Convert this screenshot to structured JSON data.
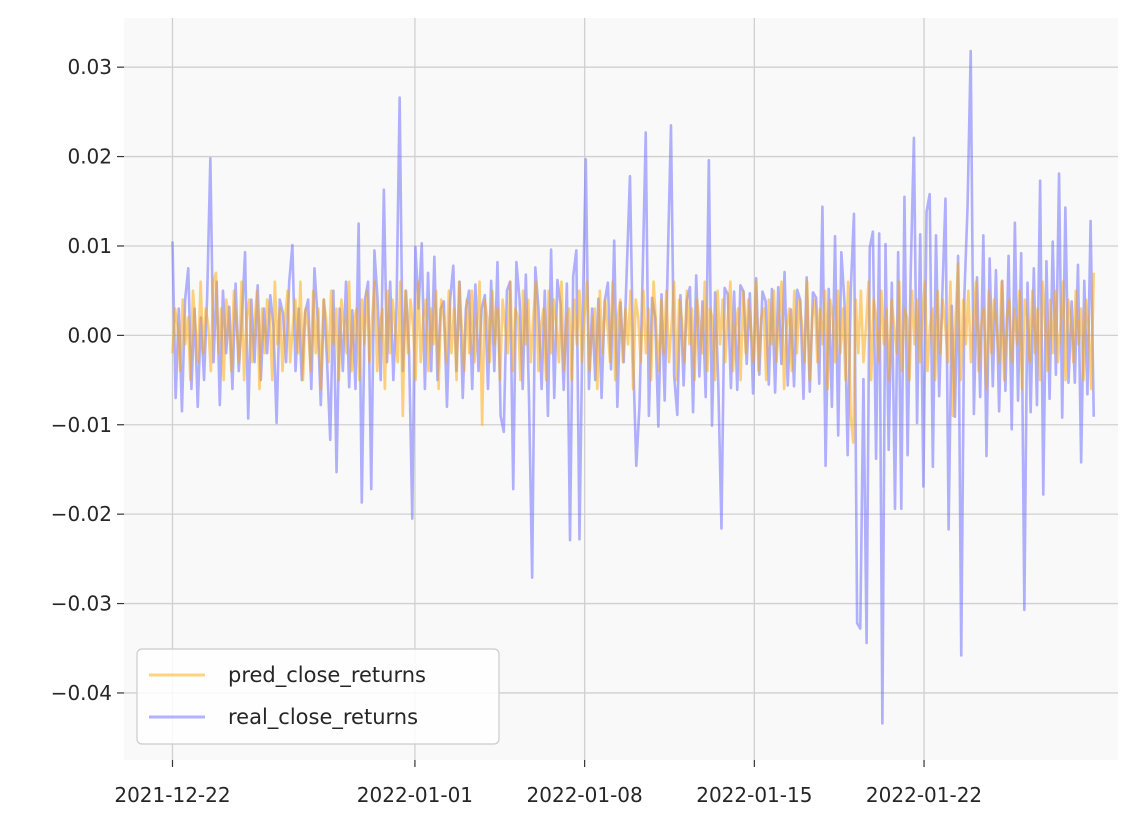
{
  "chart_data": {
    "type": "line",
    "title": "",
    "xlabel": "",
    "ylabel": "",
    "x_start": "2021-12-22",
    "x_end": "2022-01-29",
    "xlim": [
      "2021-12-20",
      "2022-01-30"
    ],
    "ylim": [
      -0.0475,
      0.0355
    ],
    "grid": true,
    "legend_position": "lower-left",
    "x_ticks": [
      "2021-12-22",
      "2022-01-01",
      "2022-01-08",
      "2022-01-15",
      "2022-01-22"
    ],
    "y_ticks": [
      {
        "value": 0.03,
        "label": "0.03"
      },
      {
        "value": 0.02,
        "label": "0.02"
      },
      {
        "value": 0.01,
        "label": "0.01"
      },
      {
        "value": 0.0,
        "label": "0.00"
      },
      {
        "value": -0.01,
        "label": "−0.01"
      },
      {
        "value": -0.02,
        "label": "−0.02"
      },
      {
        "value": -0.03,
        "label": "−0.03"
      },
      {
        "value": -0.04,
        "label": "−0.04"
      }
    ],
    "series": [
      {
        "name": "pred_close_returns",
        "color": "#ffa500",
        "values": [
          -0.002,
          0.003,
          0.001,
          -0.004,
          0.004,
          -0.001,
          0.002,
          -0.005,
          0.005,
          0.001,
          -0.003,
          0.006,
          -0.002,
          0.003,
          0.001,
          -0.004,
          0.006,
          0.007,
          -0.002,
          0.003,
          -0.005,
          0.004,
          0.002,
          -0.004,
          0.005,
          0.001,
          -0.003,
          0.006,
          -0.005,
          0.002,
          0.004,
          -0.003,
          0.001,
          0.005,
          -0.006,
          0.003,
          -0.002,
          0.004,
          0.002,
          -0.005,
          0.006,
          -0.001,
          0.003,
          -0.004,
          0.002,
          0.005,
          -0.003,
          0.001,
          0.004,
          -0.002,
          0.006,
          -0.005,
          0.003,
          0.001,
          -0.004,
          0.005,
          -0.002,
          0.003,
          -0.006,
          0.004,
          0.002,
          -0.003,
          0.005,
          -0.001,
          0.003,
          -0.005,
          0.004,
          0.001,
          -0.002,
          0.006,
          -0.004,
          0.002,
          0.003,
          -0.005,
          0.004,
          -0.001,
          0.005,
          -0.003,
          0.002,
          0.006,
          -0.004,
          0.001,
          0.003,
          -0.006,
          0.005,
          -0.002,
          0.004,
          0.001,
          -0.003,
          0.006,
          -0.009,
          0.005,
          -0.002,
          0.004,
          0.001,
          -0.005,
          0.006,
          -0.003,
          0.002,
          0.004,
          -0.004,
          0.003,
          -0.001,
          0.005,
          -0.006,
          0.004,
          0.002,
          -0.003,
          0.005,
          -0.002,
          0.003,
          -0.005,
          0.006,
          0.001,
          -0.004,
          0.004,
          -0.002,
          0.005,
          -0.003,
          0.001,
          0.006,
          -0.01,
          0.004,
          0.002,
          -0.003,
          0.005,
          -0.001,
          0.003,
          -0.005,
          0.004,
          0.001,
          -0.002,
          0.006,
          -0.004,
          0.003,
          0.002,
          -0.005,
          0.005,
          -0.001,
          0.004,
          -0.003,
          0.002,
          0.006,
          -0.004,
          0.001,
          0.003,
          -0.005,
          0.005,
          -0.002,
          0.004,
          0.001,
          -0.003,
          0.006,
          -0.004,
          0.002,
          0.003,
          -0.005,
          0.004,
          -0.001,
          0.005,
          -0.003,
          0.002,
          0.006,
          -0.004,
          0.001,
          0.003,
          -0.006,
          0.005,
          -0.002,
          0.004,
          0.001,
          -0.003,
          0.006,
          -0.005,
          0.002,
          0.004,
          -0.003,
          0.003,
          -0.001,
          0.005,
          -0.006,
          0.004,
          0.002,
          -0.003,
          0.005,
          -0.002,
          0.003,
          -0.005,
          0.006,
          0.001,
          -0.004,
          0.004,
          -0.002,
          0.005,
          -0.003,
          0.001,
          0.006,
          -0.005,
          0.004,
          0.002,
          -0.003,
          0.005,
          -0.001,
          0.003,
          -0.005,
          0.004,
          0.001,
          -0.002,
          0.006,
          -0.004,
          0.003,
          0.002,
          -0.005,
          0.005,
          -0.001,
          0.004,
          -0.003,
          0.002,
          0.006,
          -0.004,
          0.001,
          0.003,
          -0.005,
          0.005,
          -0.002,
          0.004,
          0.001,
          -0.003,
          0.006,
          -0.004,
          0.002,
          0.003,
          -0.005,
          0.004,
          -0.001,
          0.005,
          -0.003,
          0.002,
          0.006,
          -0.006,
          0.001,
          0.003,
          -0.004,
          0.005,
          -0.002,
          0.004,
          0.001,
          -0.003,
          0.006,
          -0.005,
          0.002,
          0.004,
          -0.003,
          0.003,
          -0.001,
          0.005,
          -0.006,
          0.004,
          0.002,
          -0.003,
          0.005,
          -0.002,
          0.003,
          -0.005,
          0.006,
          -0.009,
          -0.012,
          0.004,
          -0.002,
          0.005,
          -0.003,
          0.001,
          0.006,
          -0.005,
          0.004,
          0.002,
          -0.003,
          0.005,
          -0.001,
          0.003,
          -0.005,
          0.004,
          0.001,
          -0.002,
          0.006,
          -0.004,
          0.003,
          0.002,
          -0.005,
          0.005,
          -0.001,
          0.004,
          -0.003,
          0.002,
          0.006,
          -0.004,
          0.001,
          0.003,
          -0.005,
          0.005,
          -0.002,
          0.004,
          0.001,
          -0.003,
          0.006,
          -0.009,
          0.002,
          0.008,
          -0.005,
          0.004,
          -0.001,
          0.005,
          -0.003,
          0.002,
          0.006,
          -0.004,
          0.001,
          0.003,
          -0.006,
          0.005,
          -0.002,
          0.004,
          0.001,
          -0.003,
          0.006,
          -0.005,
          0.002,
          0.004,
          -0.003,
          0.003,
          -0.001,
          0.005,
          -0.006,
          0.004,
          0.002,
          -0.003,
          0.005,
          -0.002,
          0.003,
          -0.005,
          0.006,
          0.001,
          -0.004,
          0.004,
          -0.002,
          0.005,
          -0.003,
          0.001,
          0.006,
          -0.005,
          0.004,
          0.002,
          -0.003,
          0.005,
          -0.001,
          0.003,
          -0.005,
          0.004,
          0.001,
          -0.006,
          0.007
        ]
      },
      {
        "name": "real_close_returns",
        "color": "#6666ff",
        "values": [
          0.0105,
          -0.007,
          0.003,
          -0.0085,
          0.004,
          0.0075,
          -0.006,
          0.003,
          -0.008,
          0.002,
          -0.005,
          0.0045,
          0.0198,
          -0.003,
          0.006,
          -0.0078,
          0.005,
          -0.002,
          0.0032,
          -0.006,
          0.0058,
          -0.004,
          0.002,
          0.0093,
          -0.0093,
          0.004,
          -0.003,
          0.0056,
          -0.005,
          0.003,
          -0.002,
          0.0045,
          0.001,
          -0.0098,
          0.004,
          0.0025,
          -0.003,
          0.006,
          0.0101,
          -0.004,
          0.003,
          -0.005,
          0.0025,
          0.004,
          -0.006,
          0.0075,
          0.002,
          -0.0078,
          0.004,
          -0.003,
          -0.0117,
          0.005,
          -0.0153,
          0.003,
          -0.004,
          0.006,
          -0.0058,
          0.0028,
          -0.006,
          0.0125,
          -0.0187,
          0.004,
          0.006,
          -0.0172,
          0.0095,
          0.004,
          -0.005,
          0.0163,
          -0.003,
          0.006,
          -0.005,
          0.003,
          0.0266,
          -0.004,
          0.005,
          -0.002,
          -0.0205,
          0.0099,
          0.003,
          0.0103,
          -0.006,
          0.007,
          -0.004,
          0.0088,
          -0.005,
          0.003,
          0.0038,
          -0.008,
          0.004,
          0.0078,
          -0.004,
          0.006,
          -0.007,
          0.003,
          0.005,
          -0.006,
          0.0057,
          -0.004,
          0.003,
          0.0045,
          -0.006,
          0.0061,
          -0.004,
          0.0082,
          -0.009,
          -0.0108,
          0.005,
          0.006,
          -0.0172,
          0.0082,
          0.004,
          -0.006,
          0.0068,
          -0.007,
          -0.0271,
          0.0076,
          0.003,
          -0.006,
          0.005,
          -0.009,
          0.0096,
          -0.007,
          0.0062,
          0.0035,
          -0.0061,
          0.0058,
          -0.0229,
          0.0066,
          0.0095,
          -0.0228,
          0.002,
          0.0197,
          -0.006,
          0.003,
          -0.005,
          0.0041,
          -0.007,
          0.0038,
          0.0059,
          -0.0038,
          0.0106,
          -0.008,
          0.0037,
          -0.003,
          0.0075,
          0.0178,
          -0.0025,
          -0.0146,
          -0.008,
          0.0065,
          0.0227,
          -0.009,
          0.0042,
          0.002,
          -0.0102,
          0.0046,
          -0.0073,
          0.0085,
          0.0235,
          -0.0045,
          -0.0089,
          0.0045,
          -0.0056,
          0.0039,
          0.0054,
          -0.0086,
          0.0067,
          -0.0046,
          0.0038,
          -0.0069,
          0.0196,
          -0.0101,
          0.0048,
          -0.0055,
          -0.0216,
          0.0053,
          0.0046,
          -0.0059,
          0.0049,
          -0.0061,
          0.0056,
          0.0049,
          -0.0032,
          0.0047,
          -0.0065,
          0.0064,
          -0.0044,
          0.0049,
          0.0038,
          -0.0055,
          0.0052,
          -0.0064,
          0.0054,
          -0.0032,
          0.0071,
          -0.0056,
          0.0029,
          -0.0057,
          0.0051,
          0.0039,
          -0.0071,
          0.0065,
          -0.0063,
          0.0048,
          0.0042,
          -0.0054,
          0.0144,
          -0.0146,
          0.0052,
          -0.008,
          0.0111,
          -0.0112,
          0.0093,
          0.0036,
          -0.0134,
          0.0052,
          0.0136,
          -0.0322,
          -0.0328,
          -0.0049,
          -0.0344,
          0.0098,
          0.0116,
          -0.0138,
          0.0114,
          -0.0434,
          0.0102,
          -0.0128,
          0.0059,
          -0.0194,
          0.0093,
          -0.0194,
          0.0155,
          -0.0134,
          0.0073,
          0.0221,
          -0.0098,
          0.0113,
          -0.0169,
          0.0138,
          0.0158,
          -0.0147,
          0.0112,
          -0.0068,
          0.0045,
          0.0153,
          -0.0217,
          0.0033,
          -0.0091,
          0.0089,
          -0.0358,
          0.0045,
          0.0144,
          0.0318,
          -0.0088,
          0.0065,
          -0.0069,
          0.0112,
          -0.0135,
          0.0086,
          -0.0057,
          0.0073,
          -0.0085,
          0.0061,
          -0.0062,
          0.0089,
          -0.0105,
          0.0126,
          -0.0073,
          0.0092,
          -0.0307,
          0.0059,
          -0.0086,
          0.0075,
          -0.0078,
          0.0173,
          -0.0178,
          0.0083,
          -0.0071,
          0.0105,
          -0.0044,
          0.0181,
          -0.0092,
          0.0143,
          -0.0053,
          0.0038,
          -0.0053,
          0.0079,
          -0.0142,
          0.0061,
          -0.0066,
          0.0128,
          -0.0091
        ]
      }
    ]
  }
}
